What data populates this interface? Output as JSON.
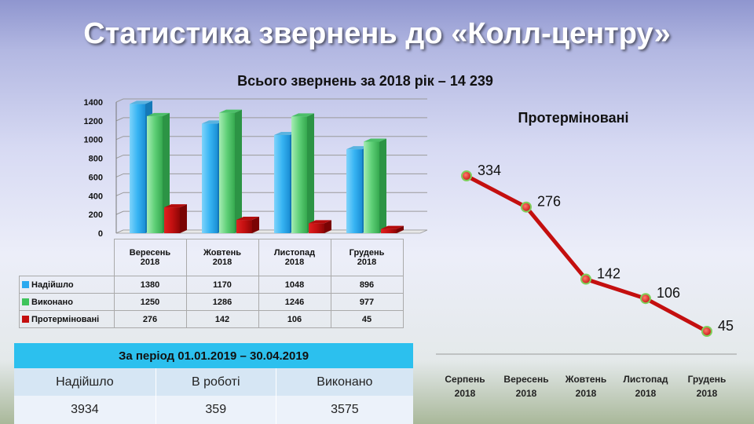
{
  "title": "Статистика звернень до «Колл-центру»",
  "bar_section": {
    "subtitle": "Всього звернень за 2018 рік – 14 239",
    "columns": [
      {
        "month": "Вересень",
        "year": "2018"
      },
      {
        "month": "Жовтень",
        "year": "2018"
      },
      {
        "month": "Листопад",
        "year": "2018"
      },
      {
        "month": "Грудень",
        "year": "2018"
      }
    ],
    "rows": [
      {
        "label": "Надійшло",
        "color": "#2ba9ef",
        "values": [
          "1380",
          "1170",
          "1048",
          "896"
        ]
      },
      {
        "label": "Виконано",
        "color": "#3fc45c",
        "values": [
          "1250",
          "1286",
          "1246",
          "977"
        ]
      },
      {
        "label": "Протерміновані",
        "color": "#c40f0f",
        "values": [
          "276",
          "142",
          "106",
          "45"
        ]
      }
    ]
  },
  "line_section": {
    "title": "Протерміновані",
    "months": [
      {
        "month": "Серпень",
        "year": "2018"
      },
      {
        "month": "Вересень",
        "year": "2018"
      },
      {
        "month": "Жовтень",
        "year": "2018"
      },
      {
        "month": "Листопад",
        "year": "2018"
      },
      {
        "month": "Грудень",
        "year": "2018"
      }
    ]
  },
  "period_table": {
    "title": "За період 01.01.2019 – 30.04.2019",
    "headers": [
      "Надійшло",
      "В роботі",
      "Виконано"
    ],
    "values": [
      "3934",
      "359",
      "3575"
    ]
  },
  "chart_data": [
    {
      "type": "bar",
      "title": "Всього звернень за 2018 рік – 14 239",
      "categories": [
        "Вересень 2018",
        "Жовтень 2018",
        "Листопад 2018",
        "Грудень 2018"
      ],
      "series": [
        {
          "name": "Надійшло",
          "values": [
            1380,
            1170,
            1048,
            896
          ]
        },
        {
          "name": "Виконано",
          "values": [
            1250,
            1286,
            1246,
            977
          ]
        },
        {
          "name": "Протерміновані",
          "values": [
            276,
            142,
            106,
            45
          ]
        }
      ],
      "ylim": [
        0,
        1400
      ],
      "yticks": [
        0,
        200,
        400,
        600,
        800,
        1000,
        1200,
        1400
      ],
      "grid": true,
      "legend": "data-table-below"
    },
    {
      "type": "line",
      "title": "Протерміновані",
      "categories": [
        "Серпень 2018",
        "Вересень 2018",
        "Жовтень 2018",
        "Листопад 2018",
        "Грудень 2018"
      ],
      "values": [
        334,
        276,
        142,
        106,
        45
      ],
      "color": "#c40f0f"
    }
  ]
}
